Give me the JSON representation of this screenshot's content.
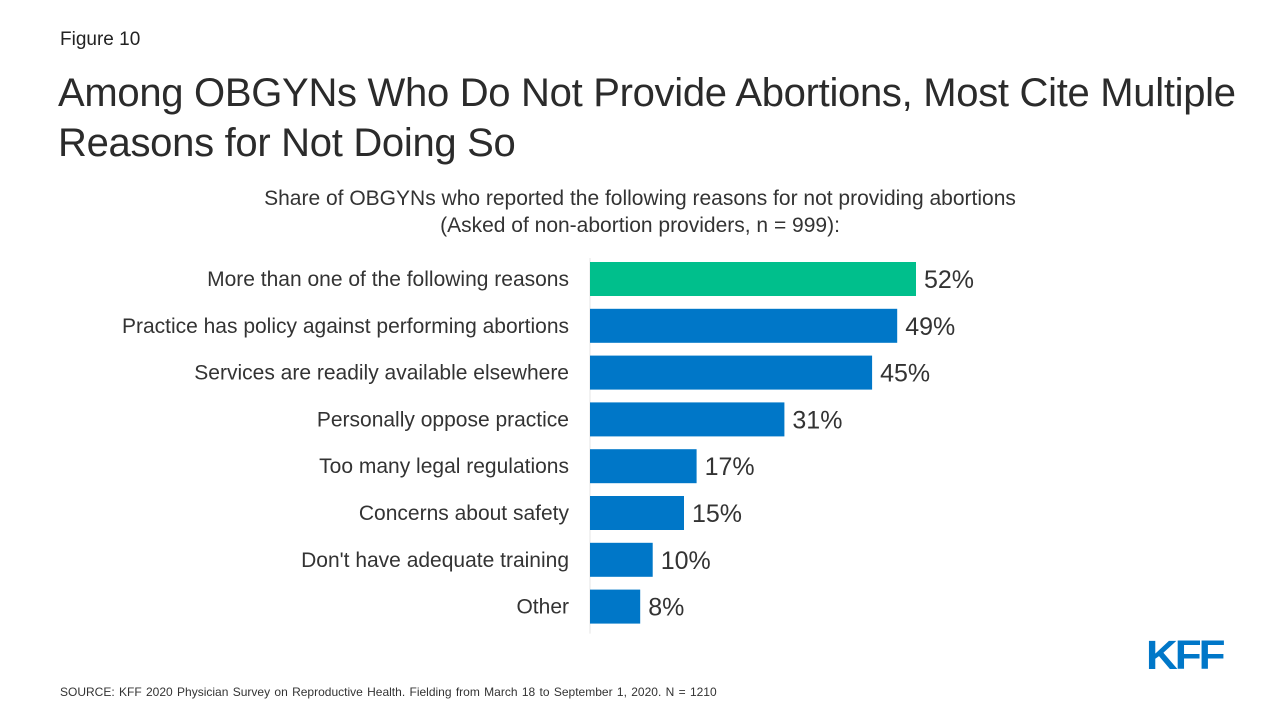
{
  "figure_label": "Figure 10",
  "title": "Among OBGYNs Who Do Not Provide Abortions, Most Cite Multiple Reasons for Not Doing So",
  "subtitle_line1": "Share of OBGYNs who reported the following reasons for not providing abortions",
  "subtitle_line2": "(Asked of non-abortion providers, n = 999):",
  "source": "SOURCE: KFF 2020 Physician Survey on Reproductive Health. Fielding from March 18 to September 1, 2020. N = 1210",
  "logo_text": "KFF",
  "colors": {
    "highlight": "#00bf8c",
    "bar": "#0077c8",
    "logo": "#0077c8",
    "axis": "#e5e5e5"
  },
  "chart_data": {
    "type": "bar",
    "orientation": "horizontal",
    "categories": [
      "More than one of the following reasons",
      "Practice has policy against performing abortions",
      "Services are readily available elsewhere",
      "Personally oppose practice",
      "Too many legal regulations",
      "Concerns about safety",
      "Don't have adequate training",
      "Other"
    ],
    "values": [
      52,
      49,
      45,
      31,
      17,
      15,
      10,
      8
    ],
    "value_labels": [
      "52%",
      "49%",
      "45%",
      "31%",
      "17%",
      "15%",
      "10%",
      "8%"
    ],
    "highlight_index": 0,
    "unit": "%",
    "grid": false,
    "legend": "none"
  }
}
